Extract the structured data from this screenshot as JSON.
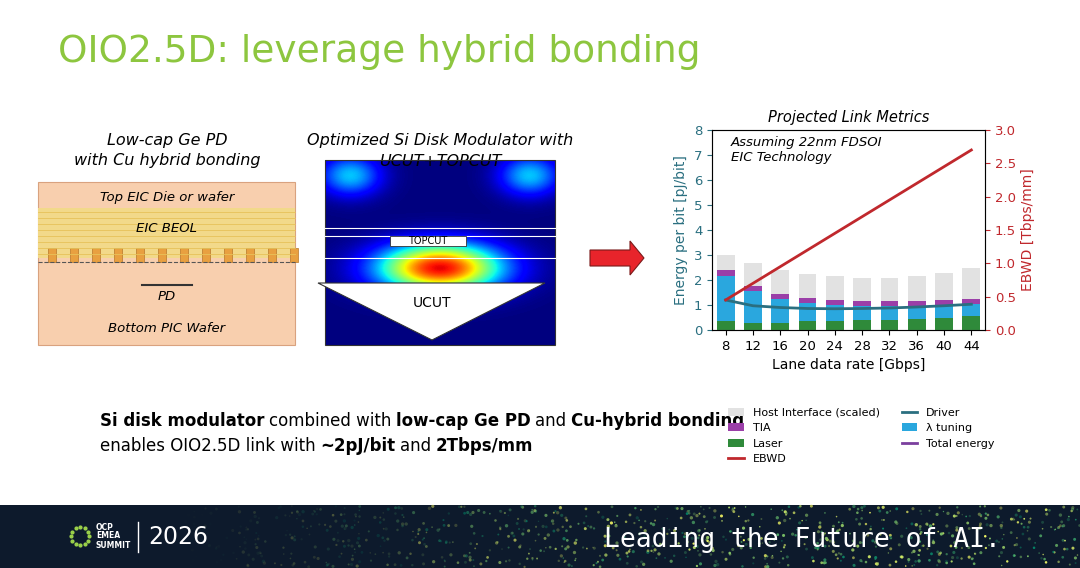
{
  "title": "OIO2.5D: leverage hybrid bonding",
  "panels": [
    {
      "caption": [
        "Low-cap Ge PD",
        "with Cu hybrid bonding"
      ],
      "labels": {
        "top": "Top EIC Die or wafer",
        "beol": "EIC BEOL",
        "pd": "PD",
        "bottom": "Bottom PIC Wafer"
      }
    },
    {
      "caption": [
        "Optimized Si Disk Modulator with",
        "UCUT+TOPCUT"
      ],
      "labels": {
        "topcut": "TOPCUT",
        "ucut": "UCUT"
      }
    }
  ],
  "chart_data": {
    "type": "bar",
    "stacked": true,
    "title": "Projected Link Metrics",
    "annotation": "Assuming 22nm FDSOI\nEIC Technology",
    "xlabel": "Lane data rate [Gbps]",
    "ylabel": "Energy per bit [pJ/bit]",
    "y2label": "EBWD [Tbps/mm]",
    "x": [
      8,
      12,
      16,
      20,
      24,
      28,
      32,
      36,
      40,
      44
    ],
    "xlim": [
      6,
      46
    ],
    "xticks": [
      8,
      12,
      16,
      20,
      24,
      28,
      32,
      36,
      40,
      44
    ],
    "ylim": [
      0,
      8
    ],
    "yticks": [
      0,
      1,
      2,
      3,
      4,
      5,
      6,
      7,
      8
    ],
    "y2lim": [
      0,
      3
    ],
    "y2ticks": [
      {
        "value": 0,
        "label": "0.0"
      },
      0.5,
      {
        "value": 1,
        "label": "1.0"
      },
      1.5,
      {
        "value": 2,
        "label": "2.0"
      },
      2.5,
      {
        "value": 3,
        "label": "3.0"
      }
    ],
    "grid": false,
    "legend": "upper left",
    "series": [
      {
        "name": "Host Interface (scaled)",
        "type": "bar",
        "color": "#e2e2e2",
        "values": [
          0.6,
          0.95,
          0.95,
          0.95,
          0.95,
          0.95,
          0.95,
          1.0,
          1.1,
          1.25
        ]
      },
      {
        "name": "Driver",
        "type": "line",
        "color": "#2a6f80",
        "values": [
          1.2,
          0.97,
          0.9,
          0.86,
          0.85,
          0.86,
          0.88,
          0.92,
          0.97,
          1.03
        ]
      },
      {
        "name": "TIA",
        "type": "bar",
        "color": "#9b3fa8",
        "values": [
          0.25,
          0.2,
          0.2,
          0.2,
          0.2,
          0.2,
          0.2,
          0.2,
          0.2,
          0.2
        ]
      },
      {
        "name": "λ tuning",
        "type": "bar",
        "color": "#2aa7de",
        "values": [
          1.8,
          1.25,
          0.95,
          0.75,
          0.65,
          0.55,
          0.55,
          0.5,
          0.5,
          0.5
        ]
      },
      {
        "name": "Laser",
        "type": "bar",
        "color": "#2f8a3a",
        "values": [
          0.35,
          0.3,
          0.3,
          0.35,
          0.35,
          0.4,
          0.4,
          0.45,
          0.5,
          0.55
        ]
      },
      {
        "name": "Total energy",
        "type": "line",
        "color": "#7b3f9e",
        "values": [
          null,
          null,
          null,
          null,
          null,
          null,
          null,
          null,
          null,
          null
        ]
      },
      {
        "name": "EBWD",
        "type": "line",
        "color": "#c0282d",
        "axis": "y2",
        "values": [
          0.45,
          0.7,
          0.95,
          1.2,
          1.45,
          1.7,
          1.95,
          2.2,
          2.45,
          2.7
        ]
      }
    ]
  },
  "summary": [
    [
      {
        "text": "Si disk modulator",
        "bold": true
      },
      {
        "text": "combined with",
        "bold": false
      },
      {
        "text": "low-cap Ge PD",
        "bold": true
      },
      {
        "text": "and",
        "bold": false
      },
      {
        "text": "Cu-hybrid bonding",
        "bold": true
      }
    ],
    [
      {
        "text": "enables OIO2.5D link with",
        "bold": false
      },
      {
        "text": "~2pJ/bit",
        "bold": true
      },
      {
        "text": "and",
        "bold": false
      },
      {
        "text": "2Tbps/mm",
        "bold": true
      }
    ]
  ],
  "footer": {
    "logo": [
      "OCP",
      "EMEA",
      "SUMMIT"
    ],
    "year": "2026",
    "tagline": "Leading the Future of AI."
  }
}
